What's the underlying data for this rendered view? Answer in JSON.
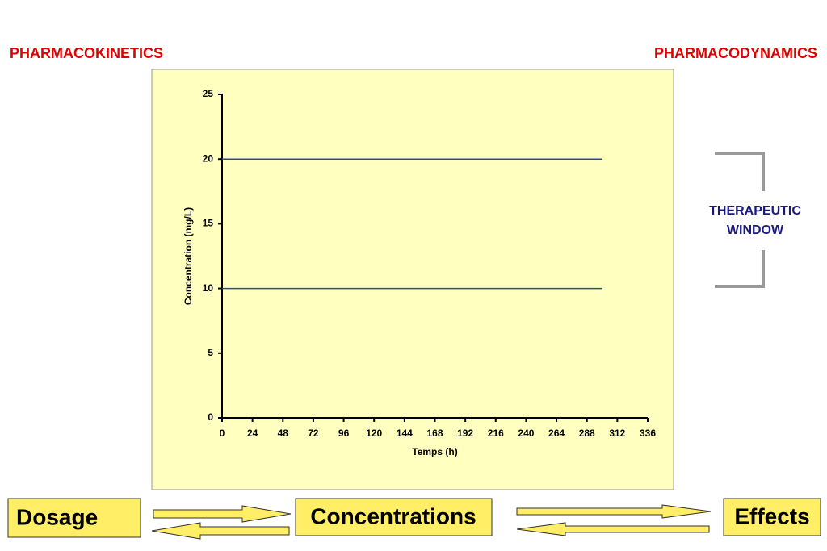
{
  "header": {
    "left": "PHARMACOKINETICS",
    "right": "PHARMACODYNAMICS"
  },
  "chart_data": {
    "type": "line",
    "xlabel": "Temps (h)",
    "ylabel": "Concentration (mg/L)",
    "x": [
      0,
      300
    ],
    "series": [
      {
        "color": "#3344aa",
        "values": [
          20,
          20
        ]
      },
      {
        "color": "#3344aa",
        "values": [
          10,
          10
        ]
      }
    ],
    "xlim": [
      0,
      336
    ],
    "xticks": [
      0,
      24,
      48,
      72,
      96,
      120,
      144,
      168,
      192,
      216,
      240,
      264,
      288,
      312,
      336
    ],
    "ylim": [
      0,
      25
    ],
    "yticks": [
      0,
      5,
      10,
      15,
      20,
      25
    ],
    "background": "#ffffc0"
  },
  "window": {
    "lines": [
      "THERAPEUTIC",
      "WINDOW"
    ]
  },
  "boxes": [
    "Dosage",
    "Concentrations",
    "Effects"
  ]
}
